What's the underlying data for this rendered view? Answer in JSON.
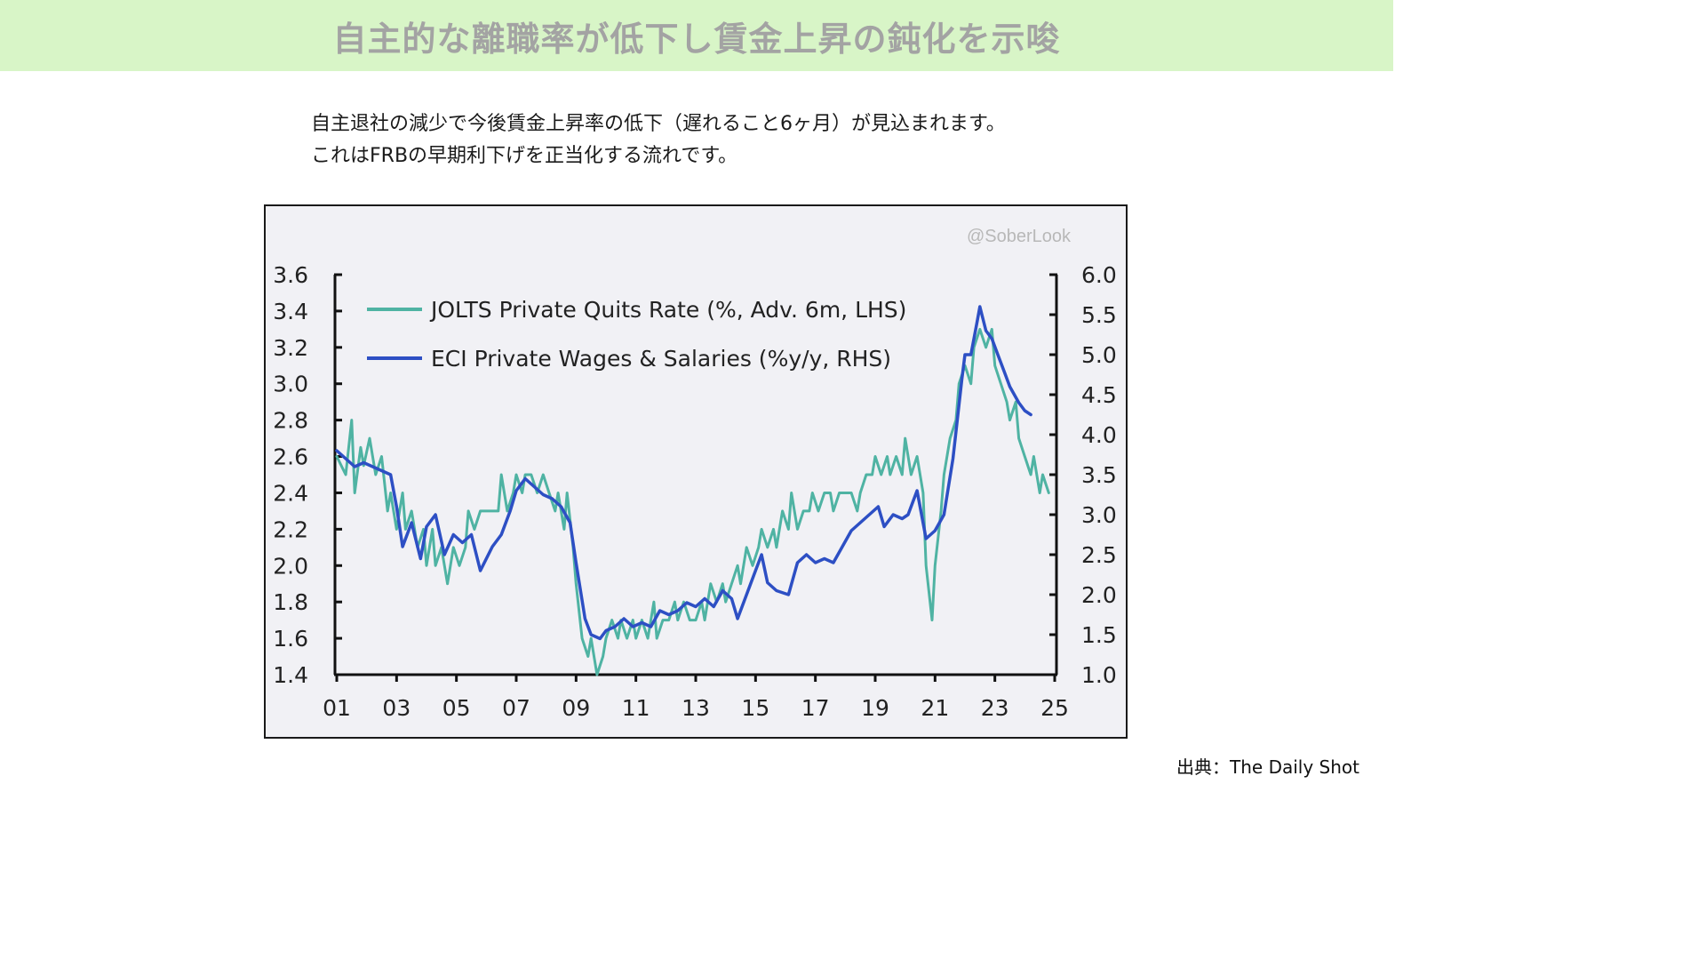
{
  "page": {
    "title": "自主的な離職率が低下し賃金上昇の鈍化を示唆",
    "lead_line1": "自主退社の減少で今後賃金上昇率の低下（遅れること6ヶ月）が見込まれます。",
    "lead_line2": "これはFRBの早期利下げを正当化する流れです。",
    "source": "出典：The Daily Shot"
  },
  "chart_data": {
    "type": "line",
    "watermark": "@SoberLook",
    "x_range": [
      2001,
      2025
    ],
    "x_ticks": [
      "01",
      "03",
      "05",
      "07",
      "09",
      "11",
      "13",
      "15",
      "17",
      "19",
      "21",
      "23",
      "25"
    ],
    "x_tick_values": [
      2001,
      2003,
      2005,
      2007,
      2009,
      2011,
      2013,
      2015,
      2017,
      2019,
      2021,
      2023,
      2025
    ],
    "left_axis": {
      "range": [
        1.4,
        3.6
      ],
      "ticks": [
        "3.6",
        "3.4",
        "3.2",
        "3.0",
        "2.8",
        "2.6",
        "2.4",
        "2.2",
        "2.0",
        "1.8",
        "1.6",
        "1.4"
      ],
      "tick_values": [
        3.6,
        3.4,
        3.2,
        3.0,
        2.8,
        2.6,
        2.4,
        2.2,
        2.0,
        1.8,
        1.6,
        1.4
      ]
    },
    "right_axis": {
      "range": [
        1.0,
        6.0
      ],
      "ticks": [
        "6.0",
        "5.5",
        "5.0",
        "4.5",
        "4.0",
        "3.5",
        "3.0",
        "2.5",
        "2.0",
        "1.5",
        "1.0"
      ],
      "tick_values": [
        6.0,
        5.5,
        5.0,
        4.5,
        4.0,
        3.5,
        3.0,
        2.5,
        2.0,
        1.5,
        1.0
      ]
    },
    "legend_position": "top-left",
    "grid": false,
    "series": [
      {
        "name": "JOLTS Private Quits Rate (%, Adv. 6m, LHS)",
        "axis": "left",
        "color": "#4fb3a3",
        "points": [
          [
            2001.0,
            2.6
          ],
          [
            2001.3,
            2.5
          ],
          [
            2001.5,
            2.8
          ],
          [
            2001.6,
            2.4
          ],
          [
            2001.8,
            2.65
          ],
          [
            2001.9,
            2.55
          ],
          [
            2002.1,
            2.7
          ],
          [
            2002.3,
            2.5
          ],
          [
            2002.5,
            2.6
          ],
          [
            2002.7,
            2.3
          ],
          [
            2002.8,
            2.4
          ],
          [
            2003.0,
            2.2
          ],
          [
            2003.2,
            2.4
          ],
          [
            2003.3,
            2.2
          ],
          [
            2003.5,
            2.3
          ],
          [
            2003.7,
            2.1
          ],
          [
            2003.9,
            2.2
          ],
          [
            2004.0,
            2.0
          ],
          [
            2004.2,
            2.2
          ],
          [
            2004.3,
            2.0
          ],
          [
            2004.5,
            2.1
          ],
          [
            2004.7,
            1.9
          ],
          [
            2004.9,
            2.1
          ],
          [
            2005.1,
            2.0
          ],
          [
            2005.3,
            2.1
          ],
          [
            2005.4,
            2.3
          ],
          [
            2005.6,
            2.2
          ],
          [
            2005.8,
            2.3
          ],
          [
            2006.0,
            2.3
          ],
          [
            2006.2,
            2.3
          ],
          [
            2006.4,
            2.3
          ],
          [
            2006.5,
            2.5
          ],
          [
            2006.7,
            2.3
          ],
          [
            2006.9,
            2.4
          ],
          [
            2007.0,
            2.5
          ],
          [
            2007.2,
            2.4
          ],
          [
            2007.3,
            2.5
          ],
          [
            2007.5,
            2.5
          ],
          [
            2007.7,
            2.4
          ],
          [
            2007.9,
            2.5
          ],
          [
            2008.1,
            2.4
          ],
          [
            2008.3,
            2.3
          ],
          [
            2008.4,
            2.4
          ],
          [
            2008.6,
            2.2
          ],
          [
            2008.7,
            2.4
          ],
          [
            2008.9,
            2.1
          ],
          [
            2009.0,
            1.9
          ],
          [
            2009.2,
            1.6
          ],
          [
            2009.4,
            1.5
          ],
          [
            2009.5,
            1.6
          ],
          [
            2009.7,
            1.4
          ],
          [
            2009.9,
            1.5
          ],
          [
            2010.0,
            1.6
          ],
          [
            2010.2,
            1.7
          ],
          [
            2010.4,
            1.6
          ],
          [
            2010.5,
            1.7
          ],
          [
            2010.7,
            1.6
          ],
          [
            2010.9,
            1.7
          ],
          [
            2011.0,
            1.6
          ],
          [
            2011.2,
            1.7
          ],
          [
            2011.4,
            1.6
          ],
          [
            2011.6,
            1.8
          ],
          [
            2011.7,
            1.6
          ],
          [
            2011.9,
            1.7
          ],
          [
            2012.1,
            1.7
          ],
          [
            2012.3,
            1.8
          ],
          [
            2012.4,
            1.7
          ],
          [
            2012.6,
            1.8
          ],
          [
            2012.8,
            1.7
          ],
          [
            2013.0,
            1.7
          ],
          [
            2013.2,
            1.8
          ],
          [
            2013.3,
            1.7
          ],
          [
            2013.5,
            1.9
          ],
          [
            2013.7,
            1.8
          ],
          [
            2013.9,
            1.9
          ],
          [
            2014.0,
            1.8
          ],
          [
            2014.2,
            1.9
          ],
          [
            2014.4,
            2.0
          ],
          [
            2014.5,
            1.9
          ],
          [
            2014.7,
            2.1
          ],
          [
            2014.9,
            2.0
          ],
          [
            2015.1,
            2.1
          ],
          [
            2015.2,
            2.2
          ],
          [
            2015.4,
            2.1
          ],
          [
            2015.6,
            2.2
          ],
          [
            2015.7,
            2.1
          ],
          [
            2015.9,
            2.3
          ],
          [
            2016.1,
            2.2
          ],
          [
            2016.2,
            2.4
          ],
          [
            2016.4,
            2.2
          ],
          [
            2016.6,
            2.3
          ],
          [
            2016.8,
            2.3
          ],
          [
            2016.9,
            2.4
          ],
          [
            2017.1,
            2.3
          ],
          [
            2017.3,
            2.4
          ],
          [
            2017.5,
            2.4
          ],
          [
            2017.6,
            2.3
          ],
          [
            2017.8,
            2.4
          ],
          [
            2018.0,
            2.4
          ],
          [
            2018.2,
            2.4
          ],
          [
            2018.4,
            2.3
          ],
          [
            2018.5,
            2.4
          ],
          [
            2018.7,
            2.5
          ],
          [
            2018.9,
            2.5
          ],
          [
            2019.0,
            2.6
          ],
          [
            2019.2,
            2.5
          ],
          [
            2019.4,
            2.6
          ],
          [
            2019.5,
            2.5
          ],
          [
            2019.7,
            2.6
          ],
          [
            2019.9,
            2.5
          ],
          [
            2020.0,
            2.7
          ],
          [
            2020.2,
            2.5
          ],
          [
            2020.4,
            2.6
          ],
          [
            2020.6,
            2.4
          ],
          [
            2020.7,
            2.0
          ],
          [
            2020.9,
            1.7
          ],
          [
            2021.0,
            2.0
          ],
          [
            2021.2,
            2.3
          ],
          [
            2021.3,
            2.5
          ],
          [
            2021.5,
            2.7
          ],
          [
            2021.7,
            2.8
          ],
          [
            2021.8,
            3.0
          ],
          [
            2022.0,
            3.1
          ],
          [
            2022.2,
            3.0
          ],
          [
            2022.3,
            3.2
          ],
          [
            2022.5,
            3.3
          ],
          [
            2022.7,
            3.2
          ],
          [
            2022.9,
            3.3
          ],
          [
            2023.0,
            3.1
          ],
          [
            2023.2,
            3.0
          ],
          [
            2023.4,
            2.9
          ],
          [
            2023.5,
            2.8
          ],
          [
            2023.7,
            2.9
          ],
          [
            2023.8,
            2.7
          ],
          [
            2024.0,
            2.6
          ],
          [
            2024.2,
            2.5
          ],
          [
            2024.3,
            2.6
          ],
          [
            2024.5,
            2.4
          ],
          [
            2024.6,
            2.5
          ],
          [
            2024.8,
            2.4
          ]
        ]
      },
      {
        "name": "ECI Private Wages & Salaries (%y/y, RHS)",
        "axis": "right",
        "color": "#2d4fc4",
        "points": [
          [
            2001.0,
            3.8
          ],
          [
            2001.3,
            3.7
          ],
          [
            2001.6,
            3.6
          ],
          [
            2001.9,
            3.65
          ],
          [
            2002.2,
            3.6
          ],
          [
            2002.5,
            3.55
          ],
          [
            2002.8,
            3.5
          ],
          [
            2003.0,
            3.1
          ],
          [
            2003.2,
            2.6
          ],
          [
            2003.5,
            2.9
          ],
          [
            2003.8,
            2.45
          ],
          [
            2004.0,
            2.85
          ],
          [
            2004.3,
            3.0
          ],
          [
            2004.6,
            2.5
          ],
          [
            2004.9,
            2.75
          ],
          [
            2005.2,
            2.65
          ],
          [
            2005.5,
            2.75
          ],
          [
            2005.8,
            2.3
          ],
          [
            2006.2,
            2.6
          ],
          [
            2006.5,
            2.75
          ],
          [
            2006.8,
            3.05
          ],
          [
            2007.0,
            3.3
          ],
          [
            2007.3,
            3.45
          ],
          [
            2007.6,
            3.35
          ],
          [
            2007.9,
            3.25
          ],
          [
            2008.2,
            3.2
          ],
          [
            2008.5,
            3.1
          ],
          [
            2008.8,
            2.9
          ],
          [
            2009.0,
            2.4
          ],
          [
            2009.3,
            1.7
          ],
          [
            2009.5,
            1.5
          ],
          [
            2009.8,
            1.45
          ],
          [
            2010.0,
            1.55
          ],
          [
            2010.3,
            1.6
          ],
          [
            2010.6,
            1.7
          ],
          [
            2010.9,
            1.6
          ],
          [
            2011.2,
            1.65
          ],
          [
            2011.5,
            1.6
          ],
          [
            2011.8,
            1.8
          ],
          [
            2012.1,
            1.75
          ],
          [
            2012.4,
            1.8
          ],
          [
            2012.7,
            1.9
          ],
          [
            2013.0,
            1.85
          ],
          [
            2013.3,
            1.95
          ],
          [
            2013.6,
            1.85
          ],
          [
            2013.9,
            2.05
          ],
          [
            2014.2,
            1.95
          ],
          [
            2014.4,
            1.7
          ],
          [
            2014.7,
            2.0
          ],
          [
            2015.0,
            2.3
          ],
          [
            2015.2,
            2.5
          ],
          [
            2015.4,
            2.15
          ],
          [
            2015.7,
            2.05
          ],
          [
            2016.1,
            2.0
          ],
          [
            2016.4,
            2.4
          ],
          [
            2016.7,
            2.5
          ],
          [
            2017.0,
            2.4
          ],
          [
            2017.3,
            2.45
          ],
          [
            2017.6,
            2.4
          ],
          [
            2017.9,
            2.6
          ],
          [
            2018.2,
            2.8
          ],
          [
            2018.5,
            2.9
          ],
          [
            2018.8,
            3.0
          ],
          [
            2019.1,
            3.1
          ],
          [
            2019.3,
            2.85
          ],
          [
            2019.6,
            3.0
          ],
          [
            2019.9,
            2.95
          ],
          [
            2020.1,
            3.0
          ],
          [
            2020.4,
            3.3
          ],
          [
            2020.7,
            2.7
          ],
          [
            2021.0,
            2.8
          ],
          [
            2021.3,
            3.0
          ],
          [
            2021.6,
            3.7
          ],
          [
            2021.9,
            4.7
          ],
          [
            2022.0,
            5.0
          ],
          [
            2022.2,
            5.0
          ],
          [
            2022.4,
            5.4
          ],
          [
            2022.5,
            5.6
          ],
          [
            2022.7,
            5.3
          ],
          [
            2022.9,
            5.2
          ],
          [
            2023.1,
            5.0
          ],
          [
            2023.3,
            4.8
          ],
          [
            2023.5,
            4.6
          ],
          [
            2023.8,
            4.4
          ],
          [
            2024.0,
            4.3
          ],
          [
            2024.2,
            4.25
          ]
        ]
      }
    ]
  }
}
